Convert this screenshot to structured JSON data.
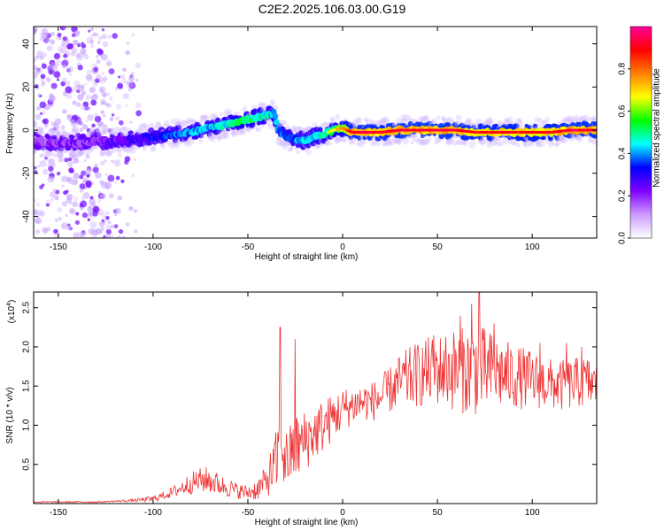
{
  "title": "C2E2.2025.106.03.00.G19",
  "chart_data": [
    {
      "type": "heatmap",
      "title": "",
      "xlabel": "Height of straight line (km)",
      "ylabel": "Frequency (Hz)",
      "xlim": [
        -163,
        134
      ],
      "ylim": [
        -50,
        48
      ],
      "xticks": [
        -150,
        -100,
        -50,
        0,
        50,
        100
      ],
      "yticks": [
        -40,
        -20,
        0,
        20,
        40
      ],
      "colorbar": {
        "label": "Normalized spectral amplitude",
        "ticks": [
          0.0,
          0.2,
          0.4,
          0.6,
          0.8
        ],
        "range": [
          0,
          1
        ],
        "colors": [
          "#ffffff",
          "#cc99ff",
          "#8000ff",
          "#0000ff",
          "#00ffff",
          "#00ff00",
          "#ffff00",
          "#ff8000",
          "#ff0000",
          "#ff0099"
        ]
      },
      "ridge": {
        "x": [
          -160,
          -150,
          -140,
          -130,
          -120,
          -110,
          -100,
          -90,
          -80,
          -70,
          -60,
          -55,
          -50,
          -45,
          -40,
          -36,
          -34,
          -30,
          -25,
          -20,
          -15,
          -10,
          -5,
          0,
          5,
          10,
          20,
          30,
          40,
          50,
          60,
          70,
          80,
          90,
          100,
          110,
          120,
          134
        ],
        "y": [
          -5,
          -6,
          -6,
          -5,
          -5,
          -4,
          -3,
          -2,
          -1,
          1,
          3,
          4,
          5,
          6,
          7,
          8,
          0,
          -3,
          -4,
          -5,
          -3,
          -2,
          0,
          1,
          -1,
          -1,
          -1,
          0,
          0,
          0,
          0,
          -1,
          -1,
          -1,
          -1,
          -1,
          0,
          0
        ],
        "amplitude": [
          0.15,
          0.2,
          0.2,
          0.2,
          0.25,
          0.3,
          0.35,
          0.4,
          0.45,
          0.5,
          0.55,
          0.6,
          0.6,
          0.55,
          0.55,
          0.5,
          0.45,
          0.45,
          0.45,
          0.5,
          0.5,
          0.55,
          0.65,
          0.75,
          0.85,
          0.9,
          0.85,
          0.9,
          0.9,
          0.9,
          0.9,
          0.85,
          0.85,
          0.85,
          0.85,
          0.85,
          0.9,
          0.9
        ]
      },
      "noise_region_x": [
        -163,
        -105
      ]
    },
    {
      "type": "line",
      "title": "",
      "xlabel": "Height of straight line (km)",
      "ylabel": "SNR (10 * v/v)",
      "yscale_label": "(x10",
      "yscale_exp": "4",
      "xlim": [
        -163,
        134
      ],
      "ylim": [
        0,
        2.7
      ],
      "xticks": [
        -150,
        -100,
        -50,
        0,
        50,
        100
      ],
      "yticks": [
        0.5,
        1.0,
        1.5,
        2.0,
        2.5
      ],
      "series": [
        {
          "color": "#ee3333",
          "x": [
            -163,
            -150,
            -140,
            -130,
            -120,
            -110,
            -100,
            -95,
            -90,
            -85,
            -80,
            -75,
            -70,
            -65,
            -60,
            -55,
            -50,
            -45,
            -40,
            -35,
            -32,
            -30,
            -28,
            -25,
            -20,
            -15,
            -10,
            -5,
            0,
            5,
            10,
            15,
            20,
            25,
            30,
            35,
            40,
            45,
            50,
            55,
            60,
            65,
            70,
            75,
            80,
            85,
            90,
            95,
            100,
            105,
            110,
            115,
            120,
            125,
            130,
            134
          ],
          "values": [
            0.02,
            0.02,
            0.02,
            0.02,
            0.03,
            0.04,
            0.06,
            0.1,
            0.14,
            0.2,
            0.26,
            0.3,
            0.3,
            0.24,
            0.2,
            0.16,
            0.14,
            0.18,
            0.3,
            0.5,
            0.8,
            0.55,
            0.6,
            0.7,
            0.8,
            0.9,
            1.0,
            1.1,
            1.2,
            1.25,
            1.3,
            1.3,
            1.35,
            1.45,
            1.55,
            1.6,
            1.65,
            1.68,
            1.7,
            1.72,
            1.7,
            1.7,
            1.72,
            1.7,
            1.68,
            1.65,
            1.62,
            1.6,
            1.58,
            1.55,
            1.52,
            1.5,
            1.52,
            1.55,
            1.55,
            1.5
          ],
          "spread": [
            0.01,
            0.01,
            0.01,
            0.01,
            0.01,
            0.02,
            0.04,
            0.05,
            0.07,
            0.1,
            0.14,
            0.16,
            0.18,
            0.14,
            0.12,
            0.1,
            0.1,
            0.14,
            0.2,
            0.45,
            0.7,
            0.4,
            0.4,
            0.45,
            0.4,
            0.35,
            0.35,
            0.3,
            0.28,
            0.25,
            0.25,
            0.25,
            0.28,
            0.3,
            0.35,
            0.4,
            0.42,
            0.45,
            0.45,
            0.5,
            0.55,
            0.55,
            0.6,
            0.55,
            0.5,
            0.45,
            0.42,
            0.4,
            0.38,
            0.35,
            0.33,
            0.33,
            0.33,
            0.33,
            0.33,
            0.3
          ],
          "spikes": [
            [
              -33,
              2.25
            ],
            [
              -25,
              2.1
            ],
            [
              48,
              2.15
            ],
            [
              62,
              2.4
            ],
            [
              68,
              2.55
            ],
            [
              72,
              2.7
            ],
            [
              80,
              2.3
            ],
            [
              104,
              2.05
            ],
            [
              118,
              2.05
            ],
            [
              126,
              2.0
            ]
          ]
        }
      ]
    }
  ]
}
